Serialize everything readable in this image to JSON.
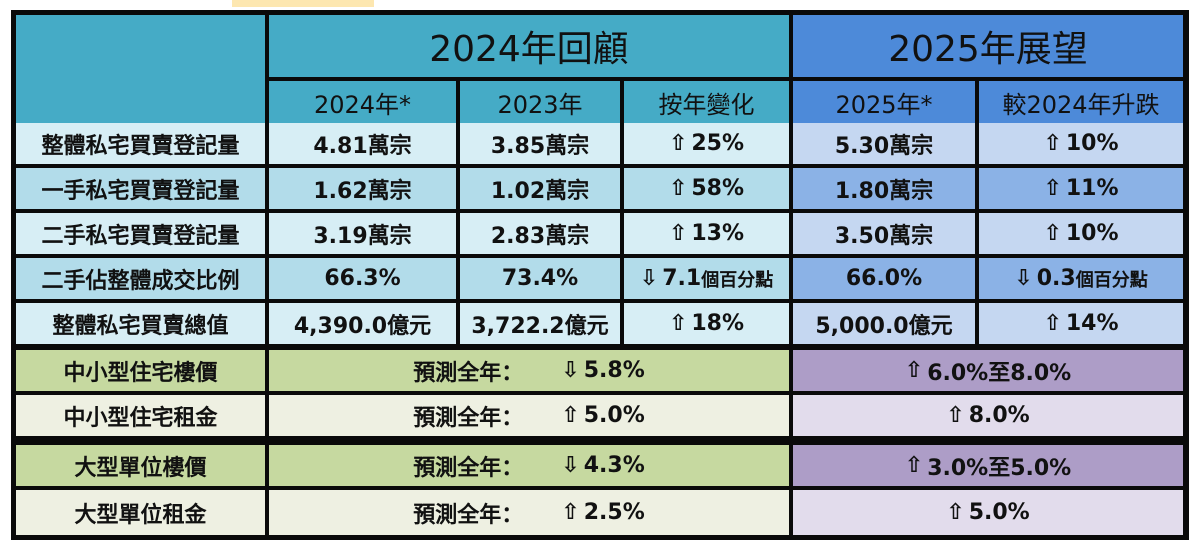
{
  "headers": {
    "review_title": "2024年回顧",
    "outlook_title": "2025年展望",
    "columns": [
      "2024年*",
      "2023年",
      "按年變化",
      "2025年*",
      "較2024年升跌"
    ]
  },
  "rows": [
    {
      "label": "整體私宅買賣登記量",
      "v2024": "4.81萬宗",
      "v2023": "3.85萬宗",
      "yoy_dir": "⇧",
      "yoy": "25%",
      "v2025": "5.30萬宗",
      "vs_dir": "⇧",
      "vs": "10%"
    },
    {
      "label": "一手私宅買賣登記量",
      "v2024": "1.62萬宗",
      "v2023": "1.02萬宗",
      "yoy_dir": "⇧",
      "yoy": "58%",
      "v2025": "1.80萬宗",
      "vs_dir": "⇧",
      "vs": "11%"
    },
    {
      "label": "二手私宅買賣登記量",
      "v2024": "3.19萬宗",
      "v2023": "2.83萬宗",
      "yoy_dir": "⇧",
      "yoy": "13%",
      "v2025": "3.50萬宗",
      "vs_dir": "⇧",
      "vs": "10%"
    },
    {
      "label": "二手佔整體成交比例",
      "v2024": "66.3%",
      "v2023": "73.4%",
      "yoy_dir": "⇩",
      "yoy": "7.1",
      "yoy_unit": "個百分點",
      "v2025": "66.0%",
      "vs_dir": "⇩",
      "vs": "0.3",
      "vs_unit": "個百分點"
    },
    {
      "label": "整體私宅買賣總值",
      "v2024": "4,390.0億元",
      "v2023": "3,722.2億元",
      "yoy_dir": "⇧",
      "yoy": "18%",
      "v2025": "5,000.0億元",
      "vs_dir": "⇧",
      "vs": "14%"
    }
  ],
  "forecast_label": "預測全年：",
  "forecasts": [
    {
      "label": "中小型住宅樓價",
      "f2024_dir": "⇩",
      "f2024": "5.8%",
      "f2025_dir": "⇧",
      "f2025": "6.0%至8.0%"
    },
    {
      "label": "中小型住宅租金",
      "f2024_dir": "⇧",
      "f2024": "5.0%",
      "f2025_dir": "⇧",
      "f2025": "8.0%"
    },
    {
      "label": "大型單位樓價",
      "f2024_dir": "⇩",
      "f2024": "4.3%",
      "f2025_dir": "⇧",
      "f2025": "3.0%至5.0%"
    },
    {
      "label": "大型單位租金",
      "f2024_dir": "⇧",
      "f2024": "2.5%",
      "f2025_dir": "⇧",
      "f2025": "5.0%"
    }
  ],
  "colors": {
    "header_teal": "#45abc6",
    "header_blue": "#4d8ad9",
    "row_light_teal": "#d7eef5",
    "row_mid_teal": "#b2dcea",
    "row_light_blue": "#c5d7f1",
    "row_mid_blue": "#8bb2e6",
    "green_dark": "#c6d9a0",
    "green_light": "#eef0e2",
    "purple_dark": "#ad9dc7",
    "purple_light": "#e2dcec"
  }
}
